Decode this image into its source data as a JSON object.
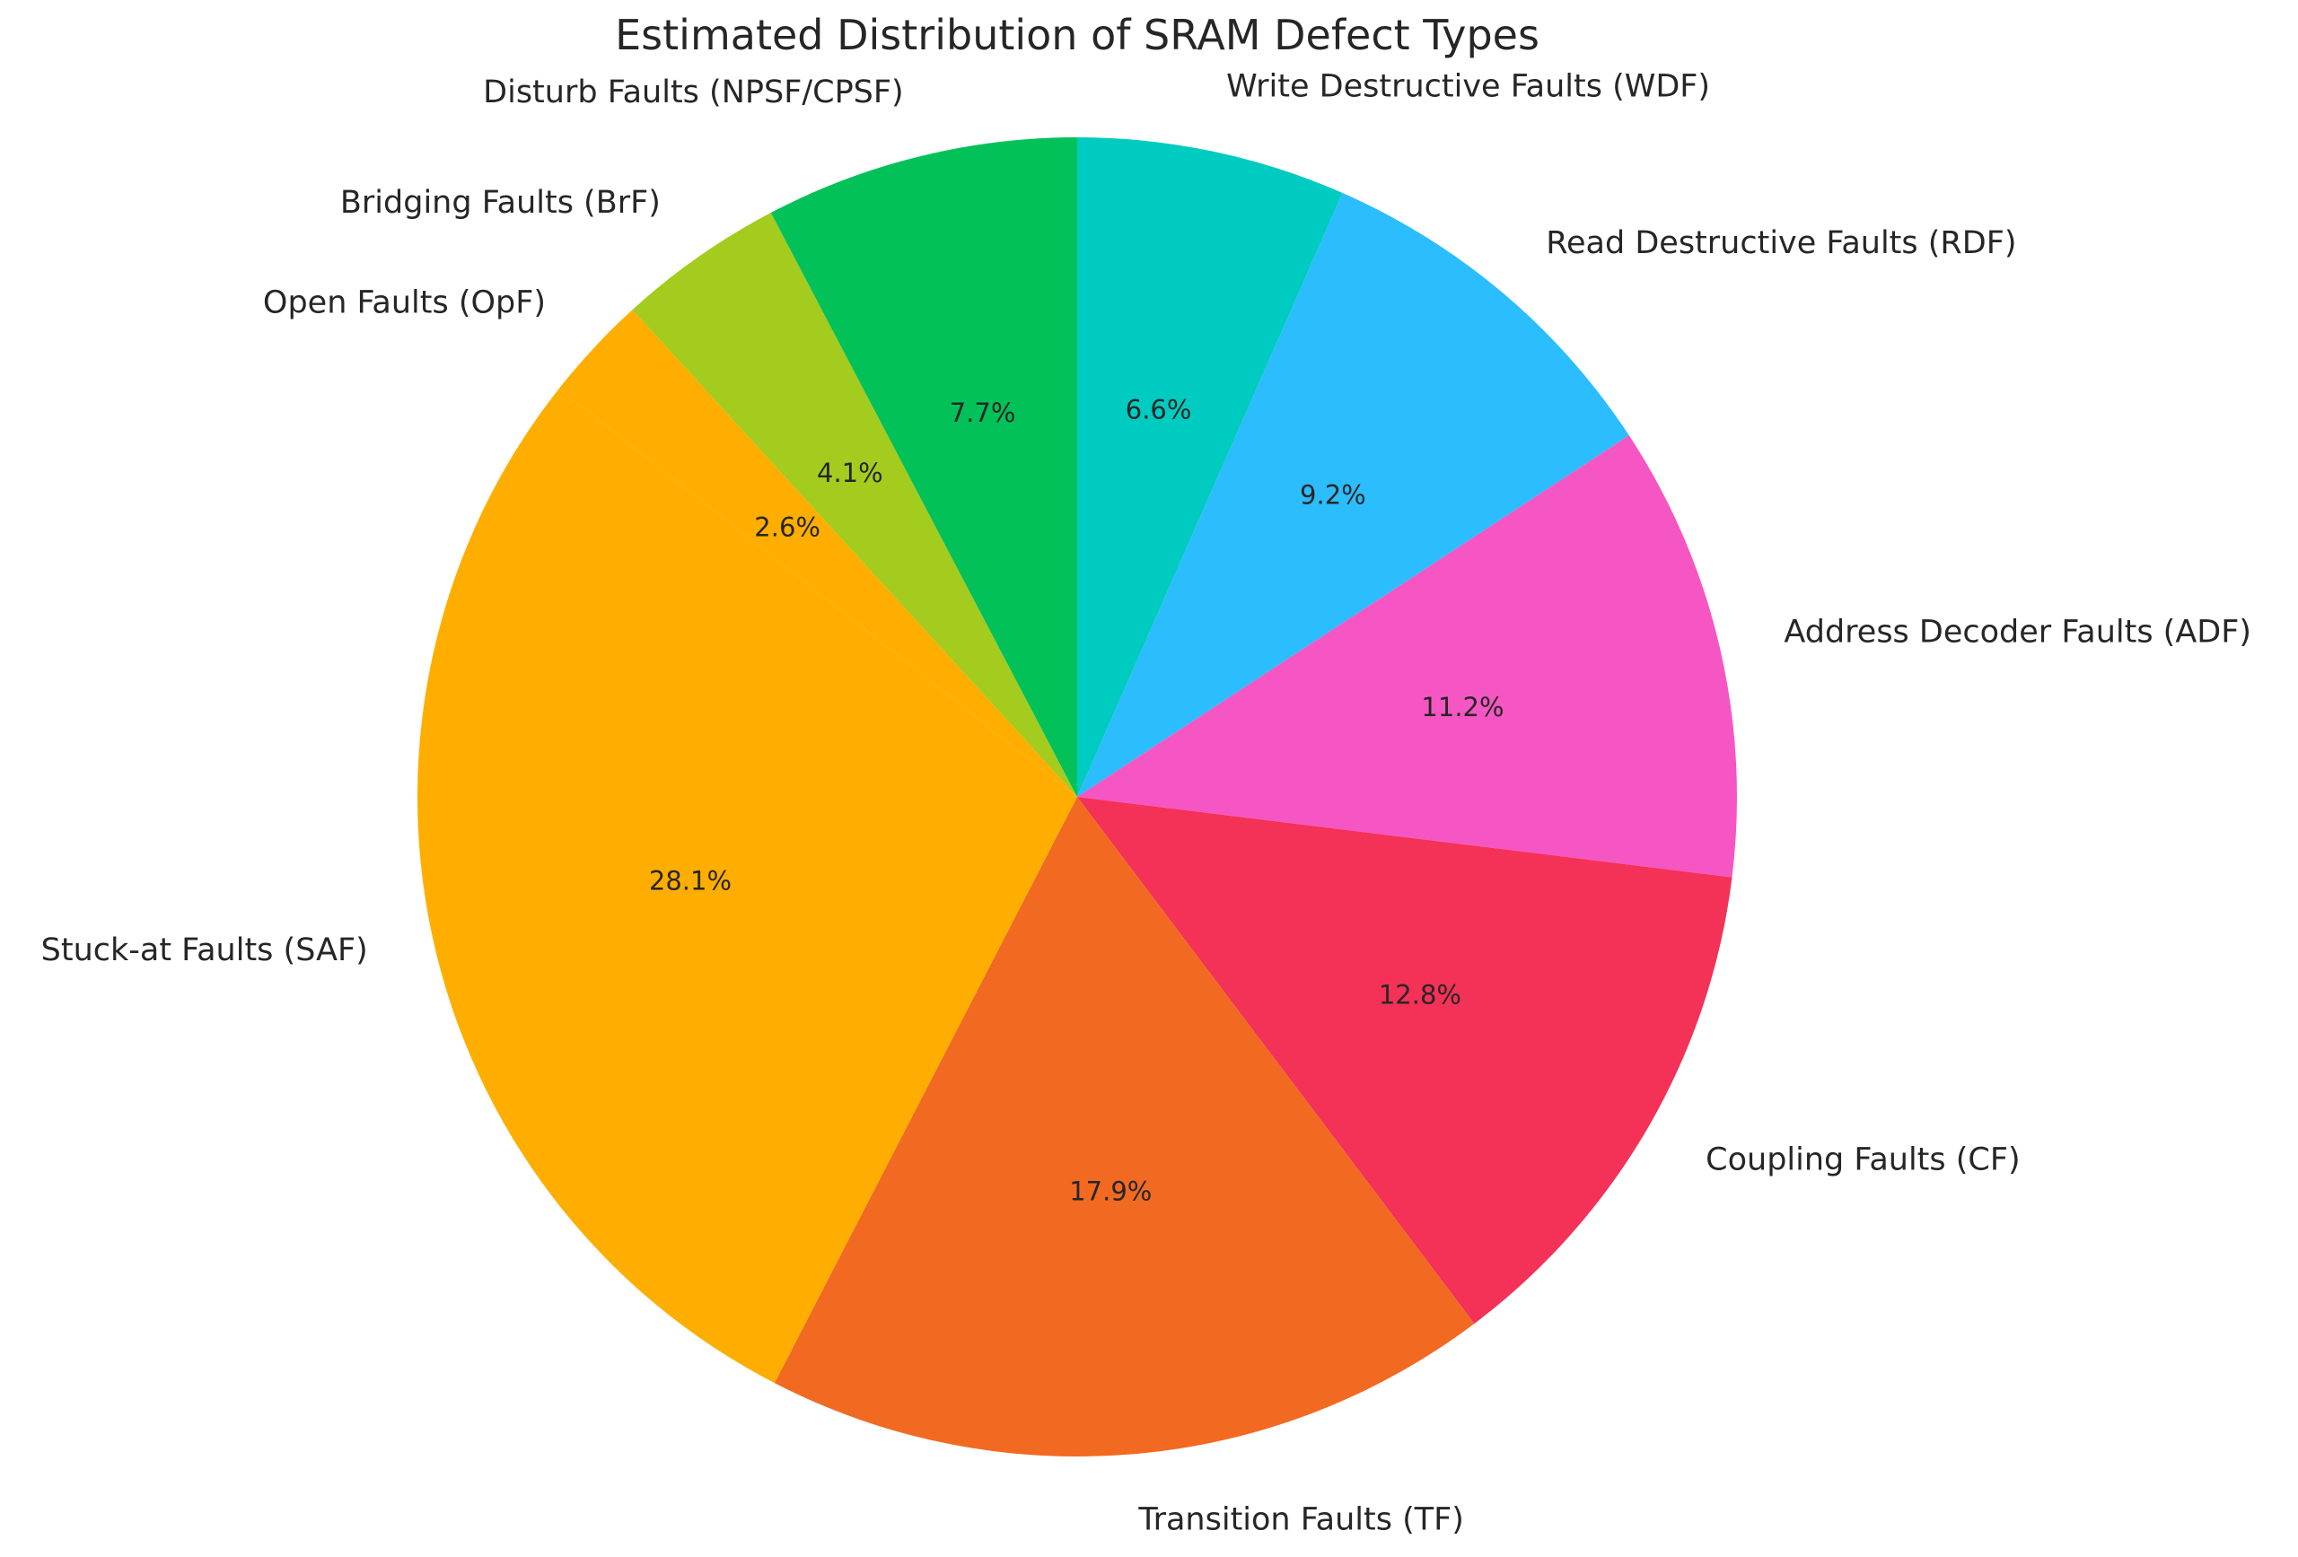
{
  "chart_data": {
    "type": "pie",
    "title": "Estimated Distribution of SRAM Defect Types",
    "start_angle_deg": 90,
    "direction": "clockwise",
    "slices": [
      {
        "label": "Write Destructive Faults (WDF)",
        "value": 6.6,
        "pct_label": "6.6%",
        "color": "#00CBC0"
      },
      {
        "label": "Read Destructive Faults (RDF)",
        "value": 9.2,
        "pct_label": "9.2%",
        "color": "#2BBDFD"
      },
      {
        "label": "Address Decoder Faults (ADF)",
        "value": 11.2,
        "pct_label": "11.2%",
        "color": "#F656C3"
      },
      {
        "label": "Coupling Faults (CF)",
        "value": 12.8,
        "pct_label": "12.8%",
        "color": "#F43156"
      },
      {
        "label": "Transition Faults (TF)",
        "value": 17.9,
        "pct_label": "17.9%",
        "color": "#F26A21"
      },
      {
        "label": "Stuck-at Faults (SAF)",
        "value": 28.1,
        "pct_label": "28.1%",
        "color": "#FFAE00"
      },
      {
        "label": "Open Faults (OpF)",
        "value": 2.6,
        "pct_label": "2.6%",
        "color": "#FFAE00"
      },
      {
        "label": "Bridging Faults (BrF)",
        "value": 4.1,
        "pct_label": "4.1%",
        "color": "#A3CC1E"
      },
      {
        "label": "Disturb Faults (NPSF/CPSF)",
        "value": 7.7,
        "pct_label": "7.7%",
        "color": "#02C158"
      }
    ]
  }
}
